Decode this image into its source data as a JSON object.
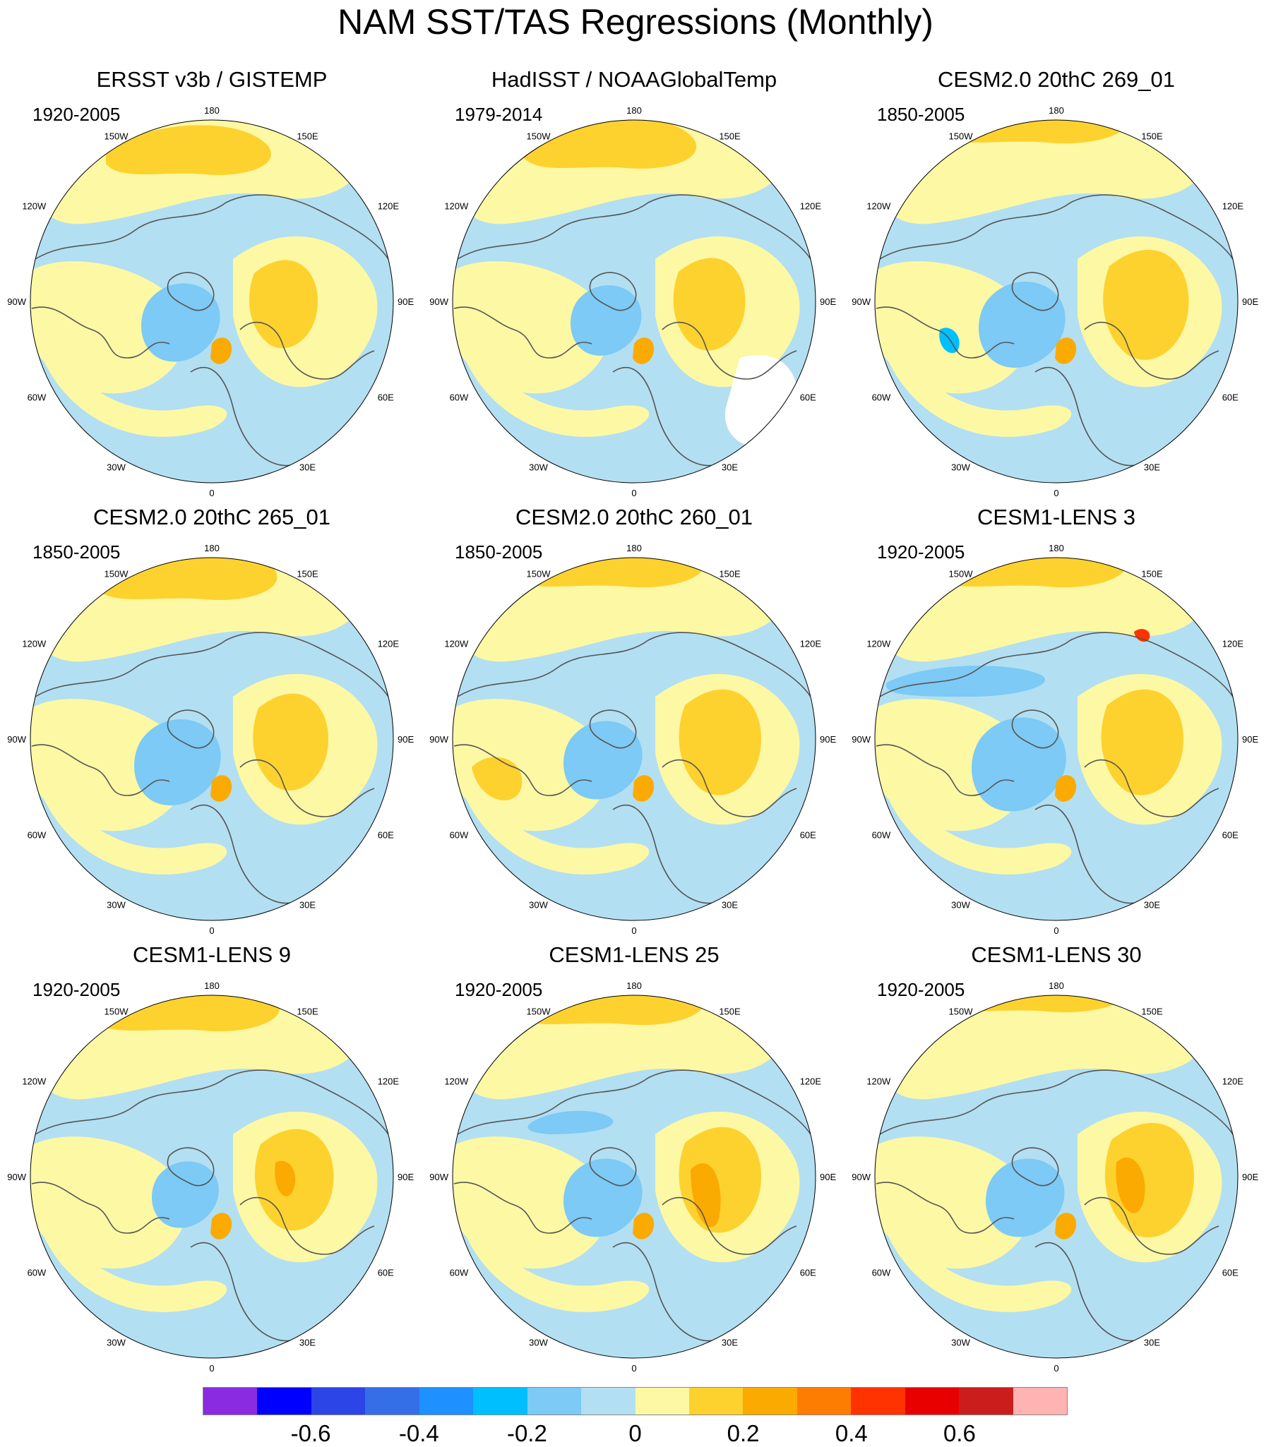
{
  "title": "NAM SST/TAS Regressions (Monthly)",
  "colors": {
    "scale": [
      "#8a2be2",
      "#0000ff",
      "#2b45e6",
      "#356fe8",
      "#1e90ff",
      "#00bfff",
      "#7ccaf5",
      "#b3dff2",
      "#fdf8a4",
      "#fdd22f",
      "#fbaa02",
      "#fd7d02",
      "#ff3300",
      "#e80000",
      "#cc1d1d",
      "#ffb3b3"
    ],
    "land_outline": "#555555",
    "missing": "#ffffff"
  },
  "colorbar": {
    "labels": [
      "-0.6",
      "-0.4",
      "-0.2",
      "0",
      "0.2",
      "0.4",
      "0.6"
    ],
    "label_values": [
      -0.6,
      -0.4,
      -0.2,
      0,
      0.2,
      0.4,
      0.6
    ],
    "range": [
      -0.8,
      0.8
    ]
  },
  "lon_labels": [
    "180",
    "150E",
    "120E",
    "90E",
    "60E",
    "30E",
    "0",
    "30W",
    "60W",
    "90W",
    "120W",
    "150W"
  ],
  "panels": [
    {
      "title": "ERSST v3b / GISTEMP",
      "period": "1920-2005"
    },
    {
      "title": "HadISST / NOAAGlobalTemp",
      "period": "1979-2014"
    },
    {
      "title": "CESM2.0 20thC 269_01",
      "period": "1850-2005"
    },
    {
      "title": "CESM2.0 20thC 265_01",
      "period": "1850-2005"
    },
    {
      "title": "CESM2.0 20thC 260_01",
      "period": "1850-2005"
    },
    {
      "title": "CESM1-LENS 3",
      "period": "1920-2005"
    },
    {
      "title": "CESM1-LENS 9",
      "period": "1920-2005"
    },
    {
      "title": "CESM1-LENS 25",
      "period": "1920-2005"
    },
    {
      "title": "CESM1-LENS 30",
      "period": "1920-2005"
    }
  ]
}
